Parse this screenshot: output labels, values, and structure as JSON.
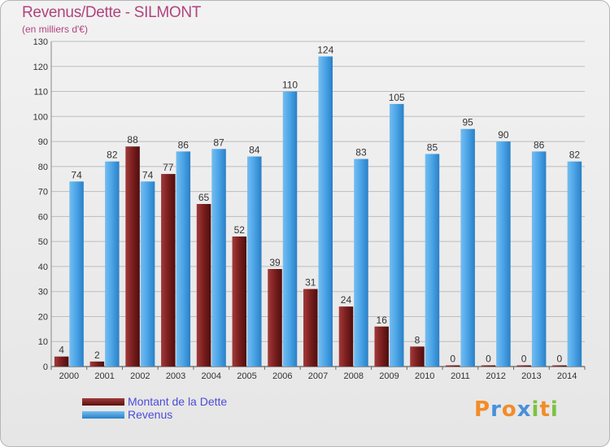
{
  "header": {
    "title": "Revenus/Dette - SILMONT",
    "subtitle": "(en milliers d'€)"
  },
  "colors": {
    "dette": "#7a1e1e",
    "revenus": "#4aa3e6",
    "grid": "#bdbdbd",
    "label": "#333333"
  },
  "logo": {
    "text": "Proxiti",
    "letters": [
      {
        "ch": "P",
        "color": "#f28c28"
      },
      {
        "ch": "r",
        "color": "#4a90d9"
      },
      {
        "ch": "o",
        "color": "#f28c28"
      },
      {
        "ch": "x",
        "color": "#4a90d9"
      },
      {
        "ch": "i",
        "color": "#7cc242"
      },
      {
        "ch": "t",
        "color": "#f28c28"
      },
      {
        "ch": "i",
        "color": "#7cc242"
      }
    ]
  },
  "chart_data": {
    "type": "bar",
    "title": "Revenus/Dette - SILMONT",
    "subtitle": "(en milliers d'€)",
    "categories": [
      "2000",
      "2001",
      "2002",
      "2003",
      "2004",
      "2005",
      "2006",
      "2007",
      "2008",
      "2009",
      "2010",
      "2011",
      "2012",
      "2013",
      "2014"
    ],
    "series": [
      {
        "name": "Montant de la Dette",
        "color": "#7a1e1e",
        "values": [
          4,
          2,
          88,
          77,
          65,
          52,
          39,
          31,
          24,
          16,
          8,
          0,
          0,
          0,
          0
        ]
      },
      {
        "name": "Revenus",
        "color": "#4aa3e6",
        "values": [
          74,
          82,
          74,
          86,
          87,
          84,
          110,
          124,
          83,
          105,
          85,
          95,
          90,
          86,
          82
        ]
      }
    ],
    "ylim": [
      0,
      130
    ],
    "yticks": [
      0,
      10,
      20,
      30,
      40,
      50,
      60,
      70,
      80,
      90,
      100,
      110,
      120,
      130
    ],
    "grid": true,
    "legend_position": "bottom-left"
  }
}
